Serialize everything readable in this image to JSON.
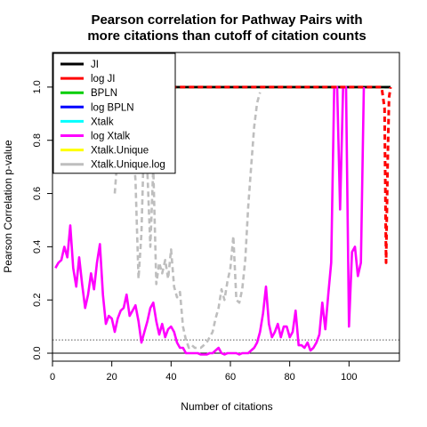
{
  "chart_data": {
    "type": "line",
    "title": [
      "Pearson correlation for Pathway Pairs with",
      "more citations than cutoff of citation counts"
    ],
    "xlabel": "Number of citations",
    "ylabel": "Pearson Correlation p-value",
    "xlim": [
      0,
      117
    ],
    "ylim": [
      -0.03,
      1.13
    ],
    "x_ticks": [
      0,
      20,
      40,
      60,
      80,
      100
    ],
    "y_ticks": [
      0.0,
      0.2,
      0.4,
      0.6,
      0.8,
      1.0
    ],
    "y_tick_labels": [
      "0.0",
      "0.2",
      "0.4",
      "0.6",
      "0.8",
      "1.0"
    ],
    "reference_lines": [
      0.05,
      0.0
    ],
    "legend_position": "top-left",
    "series": [
      {
        "name": "JI",
        "color": "#000000",
        "dash": "solid",
        "x": [
          40,
          114
        ],
        "y": [
          1.0,
          1.0
        ]
      },
      {
        "name": "log JI",
        "color": "#ff0000",
        "dash": "dashed",
        "x": [
          40,
          111,
          112,
          112.5,
          113,
          113.5,
          114
        ],
        "y": [
          1.0,
          1.0,
          0.92,
          0.34,
          0.7,
          0.96,
          1.0
        ]
      },
      {
        "name": "BPLN",
        "color": "#00cd00",
        "dash": "solid",
        "x": [
          40,
          114
        ],
        "y": [
          1.0,
          1.0
        ]
      },
      {
        "name": "log BPLN",
        "color": "#0000ff",
        "dash": "dashed",
        "x": [
          40,
          114
        ],
        "y": [
          1.0,
          1.0
        ]
      },
      {
        "name": "Xtalk",
        "color": "#00ffff",
        "dash": "dashed",
        "x": [
          40,
          114
        ],
        "y": [
          1.0,
          1.0
        ]
      },
      {
        "name": "log Xtalk",
        "color": "#ff00ff",
        "dash": "solid",
        "x": [
          1,
          2,
          3,
          4,
          5,
          6,
          7,
          8,
          9,
          10,
          11,
          12,
          13,
          14,
          15,
          16,
          17,
          18,
          19,
          20,
          21,
          22,
          23,
          24,
          25,
          26,
          27,
          28,
          29,
          30,
          31,
          32,
          33,
          34,
          35,
          36,
          37,
          38,
          39,
          40,
          41,
          42,
          43,
          44,
          45,
          46,
          47,
          48,
          49,
          50,
          51,
          52,
          53,
          54,
          55,
          56,
          57,
          58,
          59,
          60,
          61,
          62,
          63,
          64,
          65,
          66,
          67,
          68,
          69,
          70,
          71,
          72,
          73,
          74,
          75,
          76,
          77,
          78,
          79,
          80,
          81,
          82,
          83,
          84,
          85,
          86,
          87,
          88,
          89,
          90,
          91,
          92,
          93,
          94,
          95,
          96,
          97,
          98,
          99,
          100,
          101,
          102,
          103,
          104,
          105
        ],
        "y": [
          0.32,
          0.34,
          0.35,
          0.4,
          0.36,
          0.48,
          0.32,
          0.25,
          0.36,
          0.26,
          0.17,
          0.22,
          0.3,
          0.24,
          0.34,
          0.41,
          0.22,
          0.11,
          0.14,
          0.13,
          0.08,
          0.13,
          0.16,
          0.17,
          0.22,
          0.14,
          0.16,
          0.18,
          0.12,
          0.04,
          0.08,
          0.12,
          0.17,
          0.19,
          0.12,
          0.07,
          0.11,
          0.06,
          0.09,
          0.1,
          0.08,
          0.04,
          0.02,
          0.02,
          0.0,
          0.0,
          0.0,
          0.0,
          0.0,
          -0.005,
          -0.005,
          -0.005,
          0.0,
          0.0,
          0.01,
          0.02,
          0.0,
          -0.005,
          0.0,
          0.0,
          0.0,
          0.0,
          -0.005,
          0.0,
          0.0,
          0.0,
          0.01,
          0.02,
          0.04,
          0.08,
          0.15,
          0.25,
          0.11,
          0.06,
          0.08,
          0.11,
          0.06,
          0.1,
          0.1,
          0.06,
          0.08,
          0.16,
          0.03,
          0.03,
          0.02,
          0.04,
          0.01,
          0.02,
          0.04,
          0.07,
          0.19,
          0.09,
          0.22,
          0.34,
          1.0,
          1.0,
          0.54,
          1.0,
          1.0,
          0.1,
          0.38,
          0.4,
          0.29,
          0.34,
          1.0
        ]
      },
      {
        "name": "Xtalk.Unique",
        "color": "#ffff00",
        "dash": "dashed",
        "x": [
          40,
          114
        ],
        "y": [
          1.0,
          1.0
        ]
      },
      {
        "name": "Xtalk.Unique.log",
        "color": "#bebebe",
        "dash": "dashed",
        "x": [
          21,
          22,
          23,
          24,
          25,
          26,
          27,
          28,
          29,
          30,
          31,
          32,
          33,
          34,
          35,
          36,
          37,
          38,
          39,
          40,
          41,
          42,
          43,
          44,
          45,
          46,
          47,
          48,
          49,
          50,
          51,
          52,
          53,
          54,
          55,
          56,
          57,
          58,
          59,
          60,
          61,
          62,
          63,
          64,
          65,
          66,
          67,
          68,
          69,
          70
        ],
        "y": [
          0.6,
          0.75,
          0.7,
          0.85,
          0.9,
          0.95,
          0.8,
          0.65,
          0.28,
          0.45,
          0.85,
          0.68,
          0.4,
          0.7,
          0.26,
          0.34,
          0.3,
          0.35,
          0.28,
          0.39,
          0.25,
          0.21,
          0.23,
          0.1,
          0.05,
          0.02,
          0.03,
          0.02,
          0.02,
          0.02,
          0.03,
          0.04,
          0.06,
          0.08,
          0.13,
          0.17,
          0.24,
          0.2,
          0.27,
          0.32,
          0.44,
          0.2,
          0.19,
          0.24,
          0.35,
          0.55,
          0.7,
          0.85,
          0.94,
          0.98
        ]
      }
    ]
  }
}
